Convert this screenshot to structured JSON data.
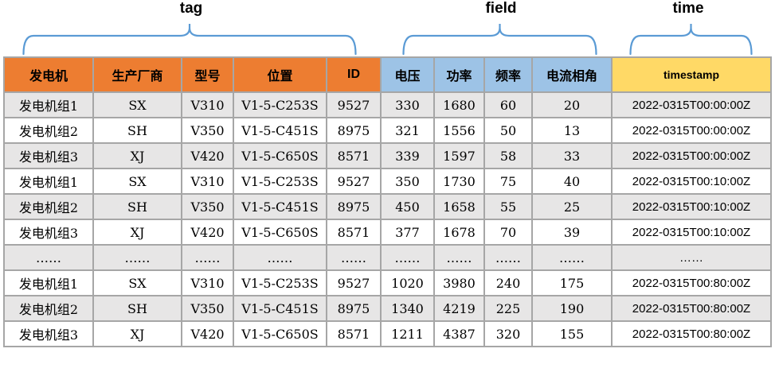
{
  "groups": [
    {
      "id": "tag",
      "label": "tag"
    },
    {
      "id": "field",
      "label": "field"
    },
    {
      "id": "time",
      "label": "time"
    }
  ],
  "colors": {
    "tag_header": "#ED7D31",
    "field_header": "#9DC3E6",
    "time_header": "#FFD966",
    "row_alt": "#E7E6E6",
    "border": "#A6A6A6",
    "brace": "#5B9BD5"
  },
  "table": {
    "columns": [
      {
        "key": "generator",
        "label": "发电机",
        "group": "tag"
      },
      {
        "key": "manufacturer",
        "label": "生产厂商",
        "group": "tag"
      },
      {
        "key": "model",
        "label": "型号",
        "group": "tag"
      },
      {
        "key": "location",
        "label": "位置",
        "group": "tag"
      },
      {
        "key": "id",
        "label": "ID",
        "group": "tag"
      },
      {
        "key": "voltage",
        "label": "电压",
        "group": "field"
      },
      {
        "key": "power",
        "label": "功率",
        "group": "field"
      },
      {
        "key": "frequency",
        "label": "频率",
        "group": "field"
      },
      {
        "key": "phase-angle",
        "label": "电流相角",
        "group": "field"
      },
      {
        "key": "timestamp",
        "label": "timestamp",
        "group": "time"
      }
    ],
    "rows": [
      [
        "发电机组1",
        "SX",
        "V310",
        "V1-5-C253S",
        "9527",
        "330",
        "1680",
        "60",
        "20",
        "2022-0315T00:00:00Z"
      ],
      [
        "发电机组2",
        "SH",
        "V350",
        "V1-5-C451S",
        "8975",
        "321",
        "1556",
        "50",
        "13",
        "2022-0315T00:00:00Z"
      ],
      [
        "发电机组3",
        "XJ",
        "V420",
        "V1-5-C650S",
        "8571",
        "339",
        "1597",
        "58",
        "33",
        "2022-0315T00:00:00Z"
      ],
      [
        "发电机组1",
        "SX",
        "V310",
        "V1-5-C253S",
        "9527",
        "350",
        "1730",
        "75",
        "40",
        "2022-0315T00:10:00Z"
      ],
      [
        "发电机组2",
        "SH",
        "V350",
        "V1-5-C451S",
        "8975",
        "450",
        "1658",
        "55",
        "25",
        "2022-0315T00:10:00Z"
      ],
      [
        "发电机组3",
        "XJ",
        "V420",
        "V1-5-C650S",
        "8571",
        "377",
        "1678",
        "70",
        "39",
        "2022-0315T00:10:00Z"
      ],
      [
        "……",
        "……",
        "……",
        "……",
        "……",
        "……",
        "……",
        "……",
        "……",
        "……"
      ],
      [
        "发电机组1",
        "SX",
        "V310",
        "V1-5-C253S",
        "9527",
        "1020",
        "3980",
        "240",
        "175",
        "2022-0315T00:80:00Z"
      ],
      [
        "发电机组2",
        "SH",
        "V350",
        "V1-5-C451S",
        "8975",
        "1340",
        "4219",
        "225",
        "190",
        "2022-0315T00:80:00Z"
      ],
      [
        "发电机组3",
        "XJ",
        "V420",
        "V1-5-C650S",
        "8571",
        "1211",
        "4387",
        "320",
        "155",
        "2022-0315T00:80:00Z"
      ]
    ]
  }
}
